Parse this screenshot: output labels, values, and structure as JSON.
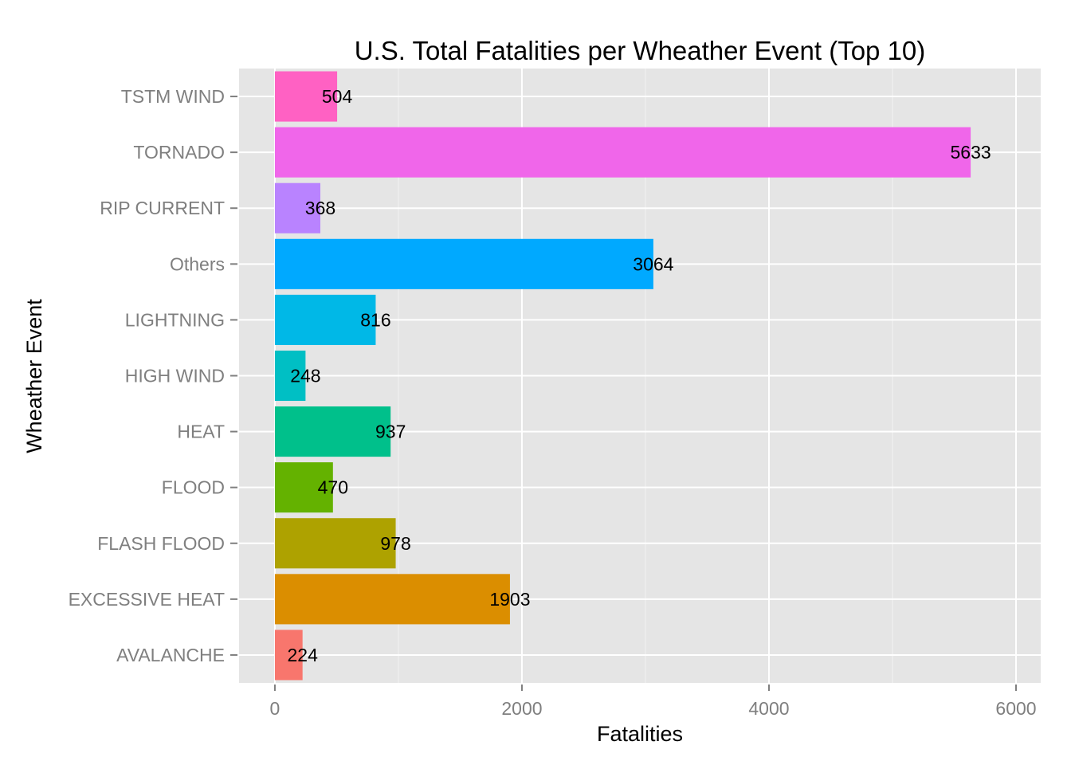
{
  "chart_data": {
    "type": "bar",
    "orientation": "horizontal",
    "title": "U.S. Total Fatalities per Wheather Event (Top 10)",
    "xlabel": "Fatalities",
    "ylabel": "Wheather Event",
    "xlim": [
      -290,
      6200
    ],
    "xticks": [
      0,
      2000,
      4000,
      6000
    ],
    "xtick_labels": [
      "0",
      "2000",
      "4000",
      "6000"
    ],
    "categories": [
      "TSTM WIND",
      "TORNADO",
      "RIP CURRENT",
      "Others",
      "LIGHTNING",
      "HIGH WIND",
      "HEAT",
      "FLOOD",
      "FLASH FLOOD",
      "EXCESSIVE HEAT",
      "AVALANCHE"
    ],
    "values": [
      504,
      5633,
      368,
      3064,
      816,
      248,
      937,
      470,
      978,
      1903,
      224
    ],
    "data_labels": [
      "504",
      "5633",
      "368",
      "3064",
      "816",
      "248",
      "937",
      "470",
      "978",
      "1903",
      "224"
    ],
    "colors": [
      "#FF61C3",
      "#F066EA",
      "#B983FF",
      "#00A9FF",
      "#00B8E7",
      "#00BFC4",
      "#00C08B",
      "#64B200",
      "#AEA200",
      "#DB8E00",
      "#F8766D"
    ],
    "panel_background": "#E5E5E5",
    "grid": true,
    "legend": "none"
  }
}
